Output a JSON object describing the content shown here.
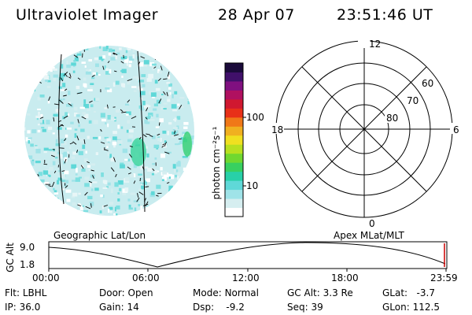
{
  "header": {
    "title": "Ultraviolet Imager",
    "date": "28 Apr 07",
    "time": "23:51:46 UT"
  },
  "colorbar": {
    "label": "photon cm⁻²s⁻¹",
    "ticks": [
      "100",
      "10"
    ],
    "colors": [
      "#ffffff",
      "#d6eef0",
      "#9fe3e8",
      "#5fd8d8",
      "#28d0a8",
      "#38d060",
      "#70d830",
      "#b8e020",
      "#f0e020",
      "#f0b020",
      "#f07818",
      "#e83018",
      "#d01830",
      "#b01060",
      "#801080",
      "#40106a",
      "#1a0a3a"
    ]
  },
  "polar_plot": {
    "labels": [
      "12",
      "6",
      "0",
      "18",
      "60",
      "70",
      "80"
    ]
  },
  "map_labels": {
    "left": "Geographic Lat/Lon",
    "right": "Apex MLat/MLT"
  },
  "timeline": {
    "y_title": "GC Alt",
    "y_ticks": [
      "9.0",
      "1.8"
    ],
    "x_ticks": [
      "00:00",
      "06:00",
      "12:00",
      "18:00",
      "23:59"
    ]
  },
  "info": {
    "row1": [
      {
        "key": "Flt:",
        "value": "LBHL"
      },
      {
        "key": "Door:",
        "value": "Open"
      },
      {
        "key": "Mode:",
        "value": "Normal"
      },
      {
        "key": "GC Alt:",
        "value": "3.3 Re"
      },
      {
        "key": "GLat:",
        "value": "-3.7"
      }
    ],
    "row2": [
      {
        "key": "IP:",
        "value": "36.0"
      },
      {
        "key": "Gain:",
        "value": "14"
      },
      {
        "key": "Dsp:",
        "value": "-9.2"
      },
      {
        "key": "Seq:",
        "value": "39"
      },
      {
        "key": "GLon:",
        "value": "112.5"
      }
    ]
  }
}
